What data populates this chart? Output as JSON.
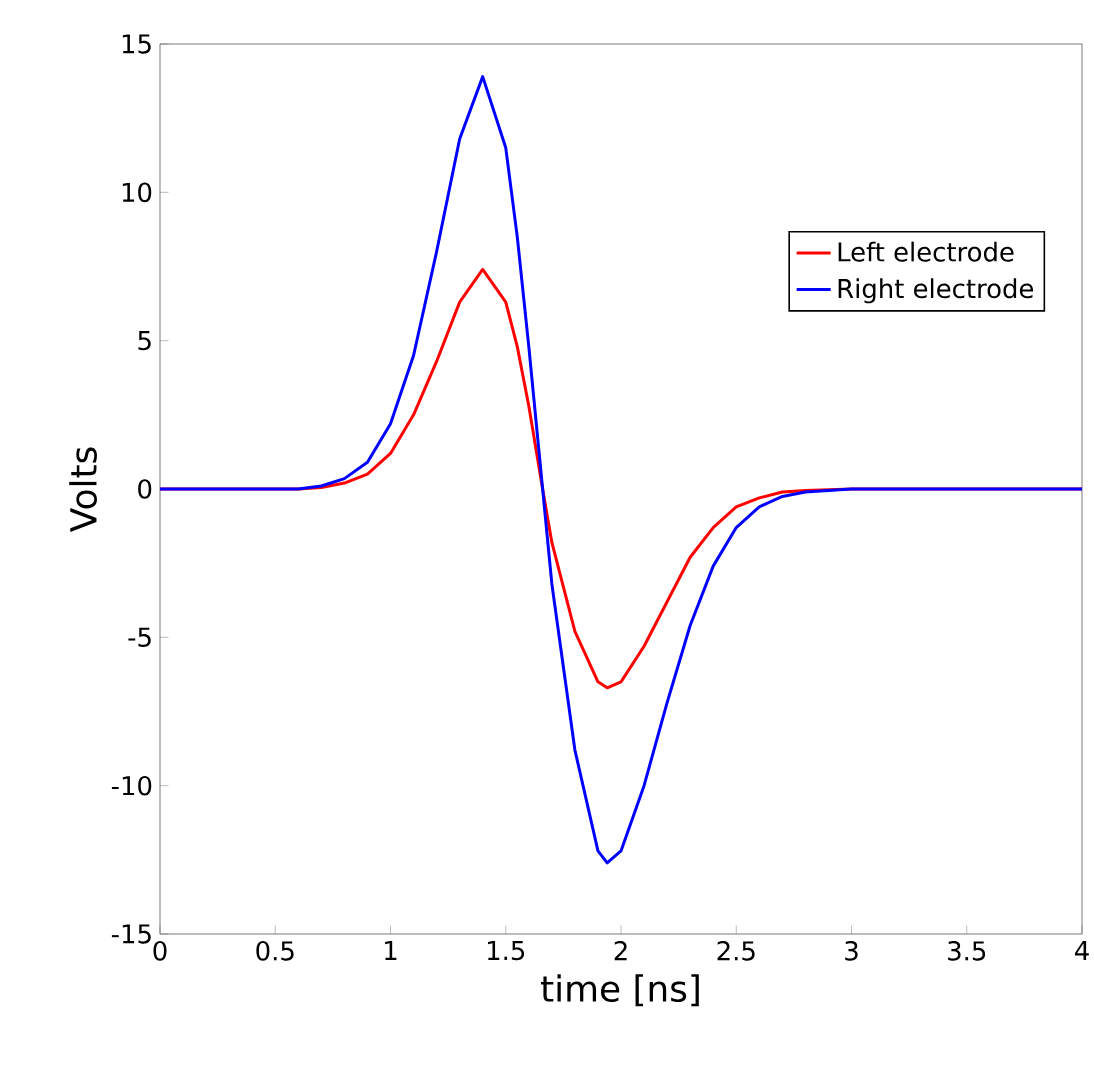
{
  "chart_data": {
    "type": "line",
    "xlabel": "time [ns]",
    "ylabel": "Volts",
    "x": [
      0,
      0.6,
      0.7,
      0.8,
      0.9,
      1.0,
      1.1,
      1.2,
      1.3,
      1.4,
      1.5,
      1.55,
      1.6,
      1.66,
      1.7,
      1.8,
      1.9,
      1.94,
      2.0,
      2.1,
      2.2,
      2.3,
      2.4,
      2.5,
      2.6,
      2.7,
      2.8,
      3.0,
      4.0
    ],
    "series": [
      {
        "name": "Left electrode",
        "color": "#ff0000",
        "values": [
          0,
          0,
          0.05,
          0.2,
          0.5,
          1.2,
          2.5,
          4.3,
          6.3,
          7.4,
          6.3,
          4.8,
          2.8,
          0,
          -1.8,
          -4.8,
          -6.5,
          -6.7,
          -6.5,
          -5.3,
          -3.8,
          -2.3,
          -1.3,
          -0.6,
          -0.3,
          -0.1,
          -0.05,
          0,
          0
        ]
      },
      {
        "name": "Right electrode",
        "color": "#0000ff",
        "values": [
          0,
          0,
          0.1,
          0.35,
          0.9,
          2.2,
          4.5,
          8.0,
          11.8,
          13.9,
          11.5,
          8.5,
          4.8,
          0,
          -3.2,
          -8.8,
          -12.2,
          -12.6,
          -12.2,
          -10.0,
          -7.2,
          -4.6,
          -2.6,
          -1.3,
          -0.6,
          -0.25,
          -0.1,
          0,
          0
        ]
      }
    ],
    "xlim": [
      0,
      4
    ],
    "ylim": [
      -15,
      15
    ],
    "xticks": [
      0,
      0.5,
      1,
      1.5,
      2,
      2.5,
      3,
      3.5,
      4
    ],
    "yticks": [
      -15,
      -10,
      -5,
      0,
      5,
      10,
      15
    ],
    "legend": "top right",
    "line_style": "solid",
    "marker": "none"
  }
}
